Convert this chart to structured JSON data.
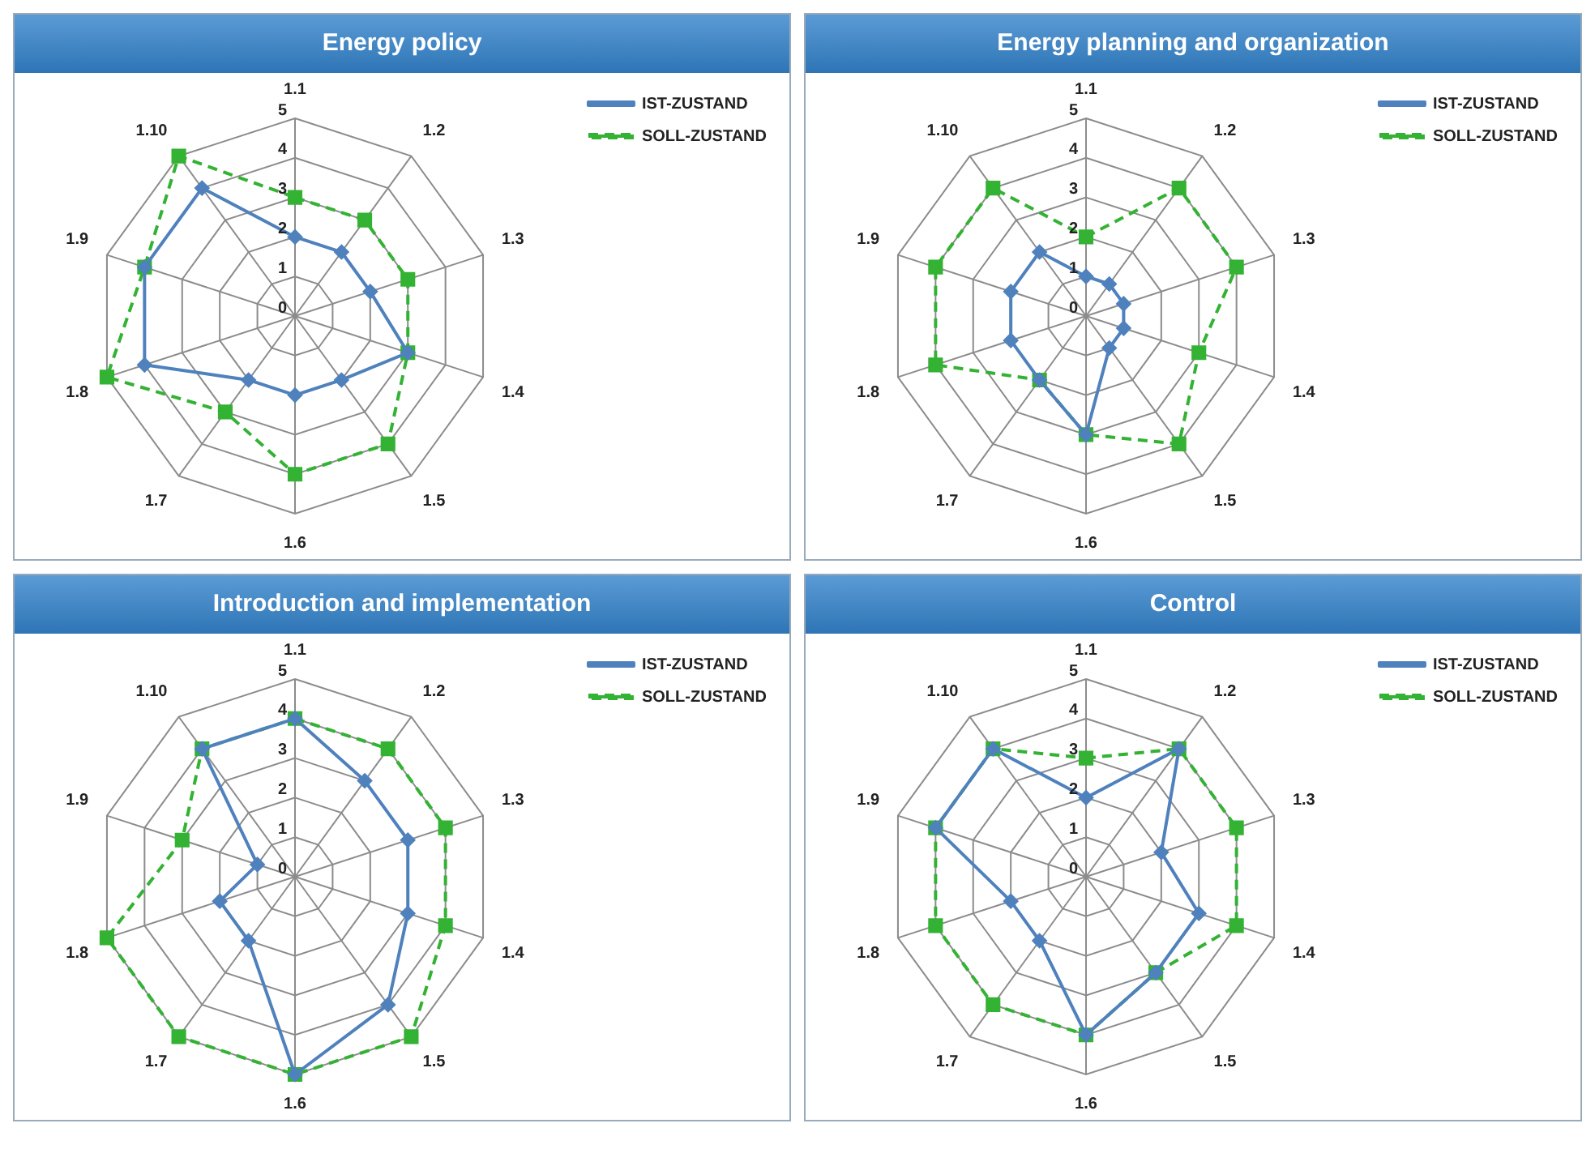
{
  "chart_data": [
    {
      "type": "radar",
      "title": "Energy policy",
      "categories": [
        "1.1",
        "1.2",
        "1.3",
        "1.4",
        "1.5",
        "1.6",
        "1.7",
        "1.8",
        "1.9",
        "1.10"
      ],
      "ylim": [
        0,
        5
      ],
      "yticks": [
        0,
        1,
        2,
        3,
        4,
        5
      ],
      "grid": true,
      "legend": "top right",
      "series": [
        {
          "name": "IST-ZUSTAND",
          "color": "#4f81bd",
          "marker": "diamond",
          "line_style": "solid",
          "values": [
            2,
            2,
            2,
            3,
            2,
            2,
            2,
            4,
            4,
            4
          ]
        },
        {
          "name": "SOLL-ZUSTAND",
          "color": "#33b233",
          "marker": "square",
          "line_style": "dashed",
          "values": [
            3,
            3,
            3,
            3,
            4,
            4,
            3,
            5,
            4,
            5
          ]
        }
      ]
    },
    {
      "type": "radar",
      "title": "Energy planning and organization",
      "categories": [
        "1.1",
        "1.2",
        "1.3",
        "1.4",
        "1.5",
        "1.6",
        "1.7",
        "1.8",
        "1.9",
        "1.10"
      ],
      "ylim": [
        0,
        5
      ],
      "yticks": [
        0,
        1,
        2,
        3,
        4,
        5
      ],
      "grid": true,
      "legend": "top right",
      "series": [
        {
          "name": "IST-ZUSTAND",
          "color": "#4f81bd",
          "marker": "diamond",
          "line_style": "solid",
          "values": [
            1,
            1,
            1,
            1,
            1,
            3,
            2,
            2,
            2,
            2
          ]
        },
        {
          "name": "SOLL-ZUSTAND",
          "color": "#33b233",
          "marker": "square",
          "line_style": "dashed",
          "values": [
            2,
            4,
            4,
            3,
            4,
            3,
            2,
            4,
            4,
            4
          ]
        }
      ]
    },
    {
      "type": "radar",
      "title": "Introduction and implementation",
      "categories": [
        "1.1",
        "1.2",
        "1.3",
        "1.4",
        "1.5",
        "1.6",
        "1.7",
        "1.8",
        "1.9",
        "1.10"
      ],
      "ylim": [
        0,
        5
      ],
      "yticks": [
        0,
        1,
        2,
        3,
        4,
        5
      ],
      "grid": true,
      "legend": "top right",
      "series": [
        {
          "name": "IST-ZUSTAND",
          "color": "#4f81bd",
          "marker": "diamond",
          "line_style": "solid",
          "values": [
            4,
            3,
            3,
            3,
            4,
            5,
            2,
            2,
            1,
            4
          ]
        },
        {
          "name": "SOLL-ZUSTAND",
          "color": "#33b233",
          "marker": "square",
          "line_style": "dashed",
          "values": [
            4,
            4,
            4,
            4,
            5,
            5,
            5,
            5,
            3,
            4
          ]
        }
      ]
    },
    {
      "type": "radar",
      "title": "Control",
      "categories": [
        "1.1",
        "1.2",
        "1.3",
        "1.4",
        "1.5",
        "1.6",
        "1.7",
        "1.8",
        "1.9",
        "1.10"
      ],
      "ylim": [
        0,
        5
      ],
      "yticks": [
        0,
        1,
        2,
        3,
        4,
        5
      ],
      "grid": true,
      "legend": "top right",
      "series": [
        {
          "name": "IST-ZUSTAND",
          "color": "#4f81bd",
          "marker": "diamond",
          "line_style": "solid",
          "values": [
            2,
            4,
            2,
            3,
            3,
            4,
            2,
            2,
            4,
            4
          ]
        },
        {
          "name": "SOLL-ZUSTAND",
          "color": "#33b233",
          "marker": "square",
          "line_style": "dashed",
          "values": [
            3,
            4,
            4,
            4,
            3,
            4,
            4,
            4,
            4,
            4
          ]
        }
      ]
    }
  ]
}
